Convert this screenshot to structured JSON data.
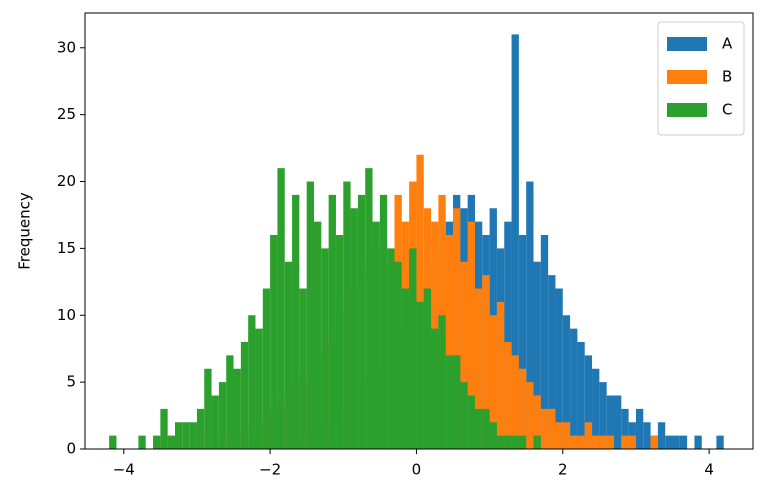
{
  "chart_data": {
    "type": "histogram",
    "ylabel": "Frequency",
    "bins": [
      -4.2,
      -4.1,
      -4,
      -3.9,
      -3.8,
      -3.7,
      -3.6,
      -3.5,
      -3.4,
      -3.3,
      -3.2,
      -3.1,
      -3,
      -2.9,
      -2.8,
      -2.7,
      -2.6,
      -2.5,
      -2.4,
      -2.3,
      -2.2,
      -2.1,
      -2,
      -1.9,
      -1.8,
      -1.7,
      -1.6,
      -1.5,
      -1.4,
      -1.3,
      -1.2,
      -1.1,
      -1,
      -0.9,
      -0.8,
      -0.7,
      -0.6,
      -0.5,
      -0.4,
      -0.3,
      -0.2,
      -0.1,
      0,
      0.1,
      0.2,
      0.3,
      0.4,
      0.5,
      0.6,
      0.7,
      0.8,
      0.9,
      1,
      1.1,
      1.2,
      1.3,
      1.4,
      1.5,
      1.6,
      1.7,
      1.8,
      1.9,
      2,
      2.1,
      2.2,
      2.3,
      2.4,
      2.5,
      2.6,
      2.7,
      2.8,
      2.9,
      3,
      3.1,
      3.2,
      3.3,
      3.4,
      3.5,
      3.6,
      3.7,
      3.8,
      3.9,
      4,
      4.1,
      4.2,
      4.3
    ],
    "series": [
      {
        "name": "A",
        "color": "#1f77b4",
        "values": [
          0,
          0,
          0,
          0,
          0,
          0,
          0,
          0,
          0,
          0,
          0,
          0,
          0,
          0,
          0,
          0,
          0,
          0,
          0,
          0,
          0,
          0,
          1,
          0,
          0,
          1,
          0,
          1,
          2,
          1,
          2,
          3,
          2,
          4,
          4,
          5,
          6,
          7,
          8,
          9,
          10,
          12,
          11,
          13,
          14,
          15,
          17,
          19,
          18,
          19,
          17,
          16,
          18,
          15,
          17,
          31,
          16,
          20,
          14,
          16,
          13,
          12,
          10,
          9,
          8,
          7,
          6,
          5,
          4,
          4,
          3,
          2,
          3,
          2,
          1,
          2,
          1,
          1,
          1,
          0,
          1,
          0,
          0,
          1,
          0
        ]
      },
      {
        "name": "B",
        "color": "#ff7f0e",
        "values": [
          0,
          0,
          0,
          0,
          0,
          0,
          0,
          1,
          1,
          0,
          0,
          0,
          0,
          1,
          0,
          1,
          1,
          1,
          2,
          1,
          2,
          2,
          3,
          4,
          3,
          5,
          6,
          5,
          7,
          9,
          8,
          10,
          11,
          12,
          14,
          13,
          15,
          16,
          14,
          19,
          17,
          20,
          22,
          18,
          17,
          19,
          16,
          18,
          14,
          17,
          12,
          13,
          10,
          11,
          8,
          7,
          6,
          5,
          4,
          3,
          3,
          2,
          2,
          1,
          1,
          2,
          1,
          1,
          1,
          0,
          1,
          1,
          0,
          0,
          1,
          0,
          0,
          0,
          0,
          0,
          0,
          0,
          0,
          0,
          0
        ]
      },
      {
        "name": "C",
        "color": "#2ca02c",
        "values": [
          1,
          0,
          0,
          0,
          1,
          0,
          1,
          3,
          1,
          2,
          2,
          2,
          3,
          6,
          4,
          5,
          7,
          6,
          8,
          10,
          9,
          12,
          16,
          21,
          14,
          19,
          12,
          20,
          17,
          15,
          19,
          16,
          20,
          18,
          19,
          21,
          17,
          19,
          15,
          14,
          12,
          15,
          11,
          12,
          9,
          10,
          7,
          7,
          5,
          4,
          3,
          3,
          2,
          1,
          1,
          1,
          1,
          0,
          1,
          0,
          0,
          0,
          0,
          0,
          0,
          0,
          0,
          0,
          0,
          0,
          0,
          0,
          0,
          0,
          0,
          0,
          0,
          0,
          0,
          0,
          0,
          0,
          0,
          0,
          0
        ]
      }
    ],
    "xlim": [
      -4.53,
      4.6
    ],
    "xticks": [
      {
        "value": -4,
        "label": "−4"
      },
      {
        "value": -2,
        "label": "−2"
      },
      0,
      2,
      4
    ],
    "ylim": [
      0,
      32.6
    ],
    "yticks": [
      0,
      5,
      10,
      15,
      20,
      25,
      30
    ],
    "legend": "upper right"
  }
}
